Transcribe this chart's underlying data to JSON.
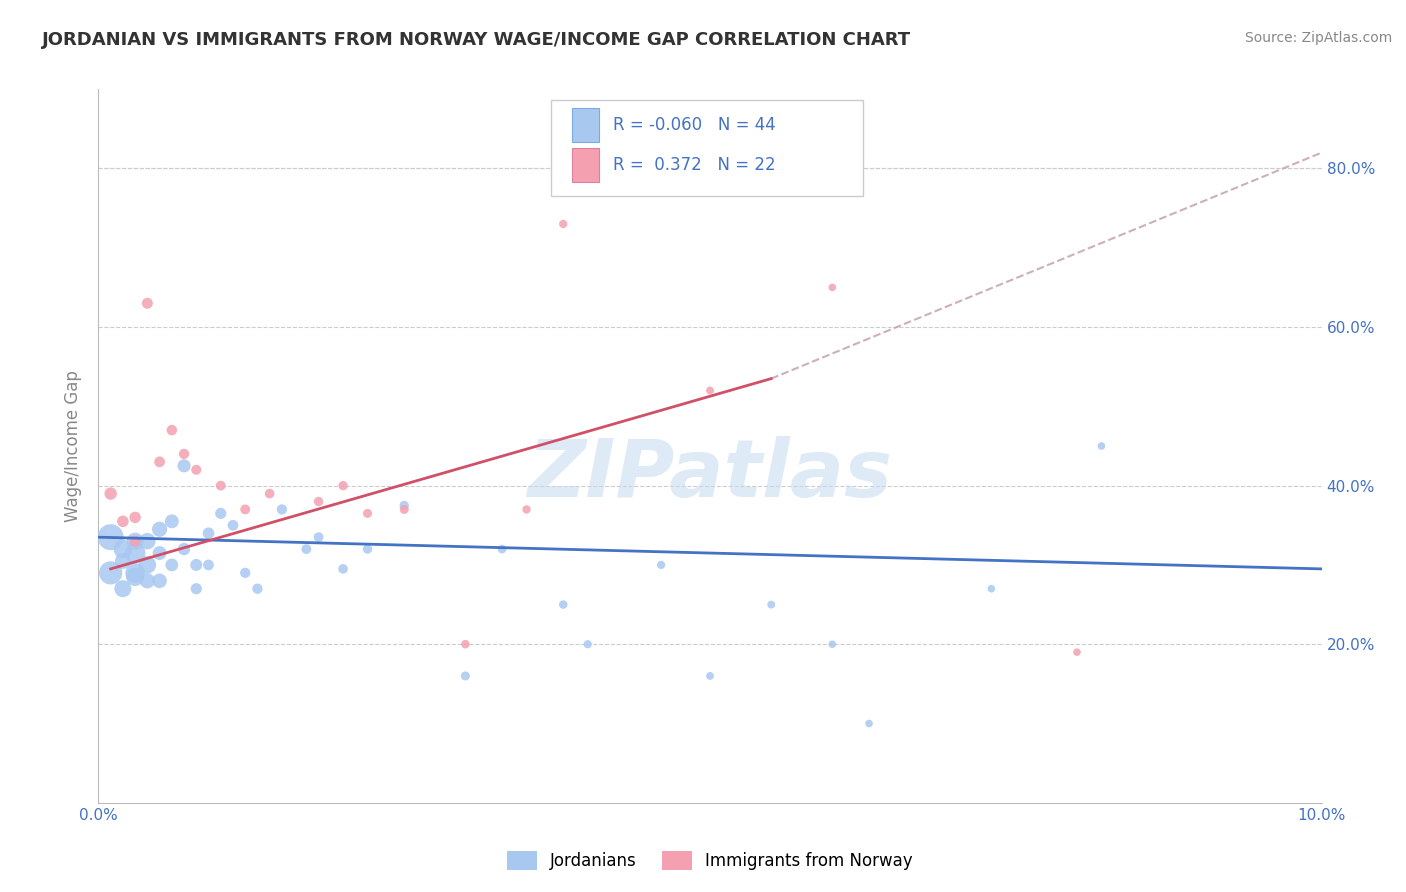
{
  "title": "JORDANIAN VS IMMIGRANTS FROM NORWAY WAGE/INCOME GAP CORRELATION CHART",
  "source": "Source: ZipAtlas.com",
  "ylabel": "Wage/Income Gap",
  "xlim": [
    0.0,
    0.1
  ],
  "ylim": [
    0.0,
    0.9
  ],
  "blue_color": "#A8C8F0",
  "pink_color": "#F4A0B0",
  "blue_line_color": "#4472C4",
  "pink_line_color": "#D05068",
  "dashed_line_color": "#C8A8B0",
  "r_blue": "-0.060",
  "n_blue": 44,
  "r_pink": "0.372",
  "n_pink": 22,
  "watermark": "ZIPatlas",
  "blue_trend": [
    0.0,
    0.1,
    0.335,
    0.295
  ],
  "pink_trend_solid": [
    0.001,
    0.055,
    0.295,
    0.535
  ],
  "pink_trend_dashed": [
    0.055,
    0.1,
    0.535,
    0.82
  ],
  "jordanians_x": [
    0.001,
    0.001,
    0.002,
    0.002,
    0.002,
    0.003,
    0.003,
    0.003,
    0.003,
    0.004,
    0.004,
    0.004,
    0.005,
    0.005,
    0.005,
    0.006,
    0.006,
    0.007,
    0.007,
    0.008,
    0.008,
    0.009,
    0.009,
    0.01,
    0.011,
    0.012,
    0.013,
    0.015,
    0.017,
    0.018,
    0.02,
    0.022,
    0.025,
    0.03,
    0.033,
    0.038,
    0.04,
    0.046,
    0.05,
    0.055,
    0.063,
    0.073,
    0.082,
    0.06
  ],
  "jordanians_y": [
    0.335,
    0.29,
    0.32,
    0.27,
    0.305,
    0.315,
    0.29,
    0.285,
    0.33,
    0.3,
    0.33,
    0.28,
    0.345,
    0.28,
    0.315,
    0.355,
    0.3,
    0.425,
    0.32,
    0.3,
    0.27,
    0.34,
    0.3,
    0.365,
    0.35,
    0.29,
    0.27,
    0.37,
    0.32,
    0.335,
    0.295,
    0.32,
    0.375,
    0.16,
    0.32,
    0.25,
    0.2,
    0.3,
    0.16,
    0.25,
    0.1,
    0.27,
    0.45,
    0.2
  ],
  "jordanians_size": [
    350,
    280,
    180,
    150,
    130,
    220,
    200,
    175,
    150,
    160,
    140,
    120,
    120,
    110,
    100,
    100,
    85,
    90,
    80,
    75,
    65,
    70,
    60,
    65,
    60,
    55,
    55,
    55,
    50,
    50,
    48,
    45,
    45,
    42,
    40,
    38,
    35,
    35,
    32,
    32,
    30,
    30,
    30,
    30
  ],
  "norway_x": [
    0.001,
    0.002,
    0.003,
    0.003,
    0.004,
    0.005,
    0.006,
    0.007,
    0.008,
    0.01,
    0.012,
    0.014,
    0.018,
    0.02,
    0.022,
    0.025,
    0.03,
    0.035,
    0.038,
    0.05,
    0.06,
    0.08
  ],
  "norway_y": [
    0.39,
    0.355,
    0.36,
    0.33,
    0.63,
    0.43,
    0.47,
    0.44,
    0.42,
    0.4,
    0.37,
    0.39,
    0.38,
    0.4,
    0.365,
    0.37,
    0.2,
    0.37,
    0.73,
    0.52,
    0.65,
    0.19
  ],
  "norway_size": [
    80,
    70,
    68,
    62,
    62,
    60,
    57,
    55,
    52,
    50,
    50,
    48,
    46,
    45,
    42,
    42,
    38,
    36,
    36,
    32,
    30,
    30
  ]
}
